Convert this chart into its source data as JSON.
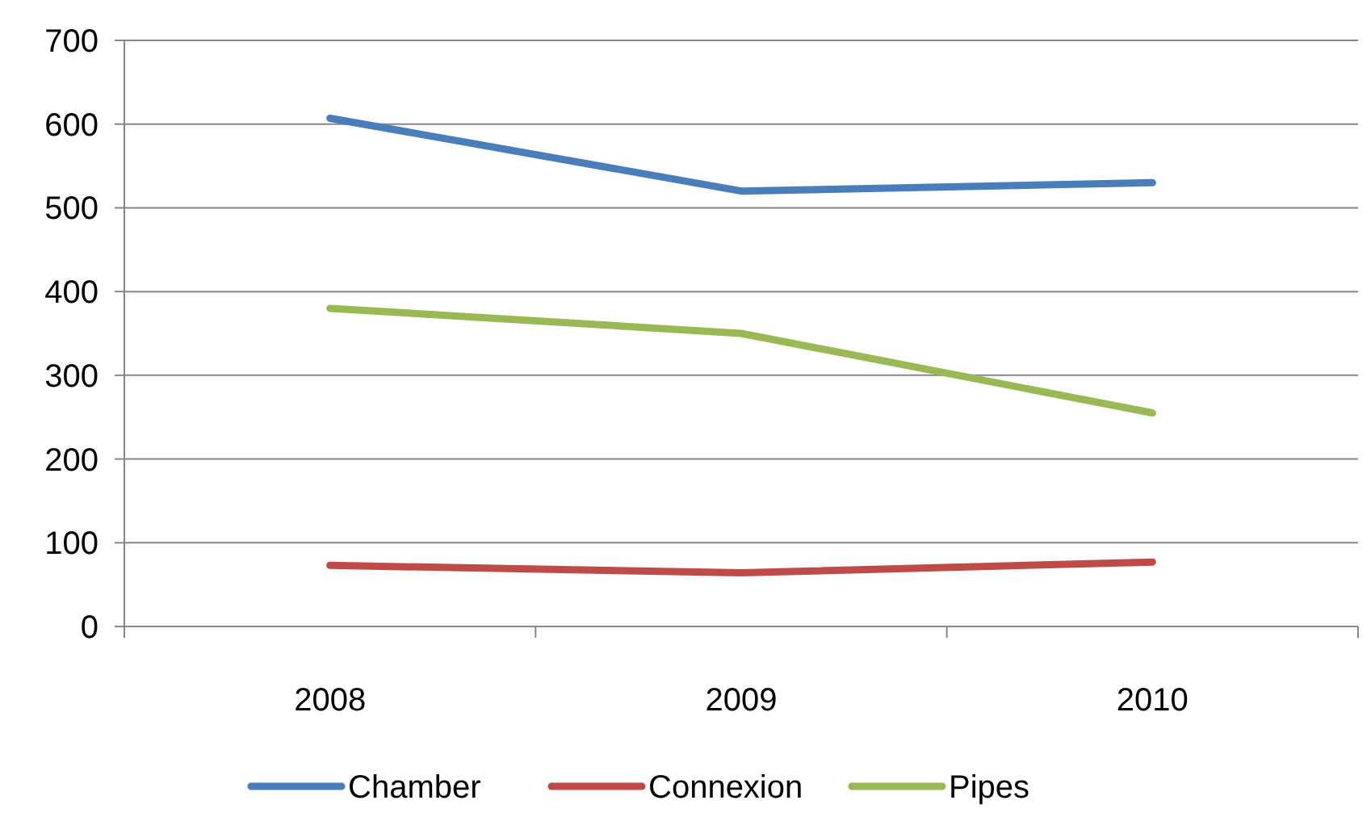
{
  "chart_data": {
    "type": "line",
    "categories": [
      "2008",
      "2009",
      "2010"
    ],
    "series": [
      {
        "name": "Chamber",
        "color": "#4a7ebb",
        "values": [
          607,
          520,
          530
        ]
      },
      {
        "name": "Connexion",
        "color": "#be4b48",
        "values": [
          73,
          64,
          77
        ]
      },
      {
        "name": "Pipes",
        "color": "#98b954",
        "values": [
          380,
          350,
          255
        ]
      }
    ],
    "ylim": [
      0,
      700
    ],
    "yticks": [
      0,
      100,
      200,
      300,
      400,
      500,
      600,
      700
    ],
    "grid": "y",
    "legend": "bottom",
    "marker": "none",
    "line_style": "solid"
  }
}
